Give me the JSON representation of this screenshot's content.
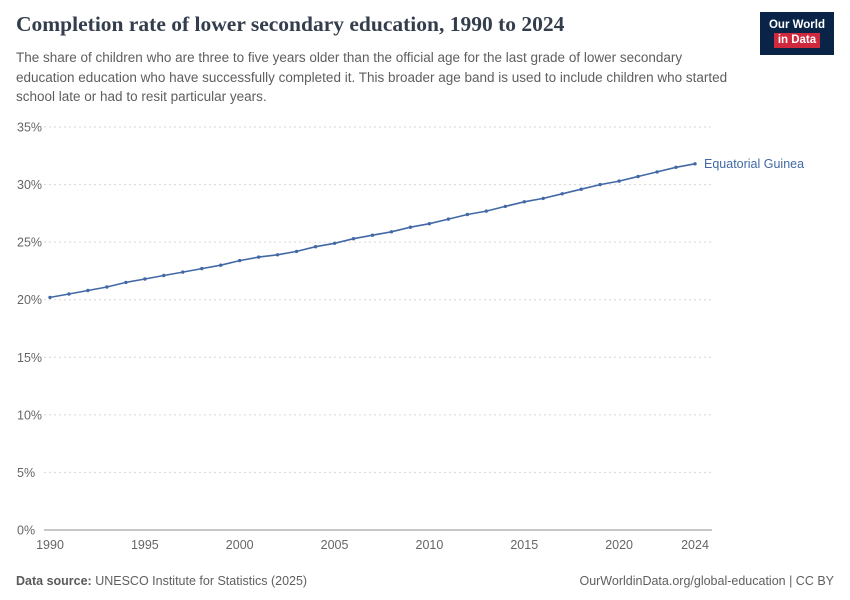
{
  "header": {
    "title": "Completion rate of lower secondary education, 1990 to 2024",
    "subtitle": "The share of children who are three to five years older than the official age for the last grade of lower secondary education education who have successfully completed it. This broader age band is used to include children who started school late or had to resit particular years.",
    "logo": {
      "line1": "Our World",
      "line2": "in Data"
    }
  },
  "footer": {
    "source_label": "Data source:",
    "source_text": " UNESCO Institute for Statistics (2025)",
    "right_text": "OurWorldinData.org/global-education | CC BY"
  },
  "colors": {
    "series_blue": "#4269a5",
    "logo_navy": "#0a2448",
    "logo_red": "#d0293e"
  },
  "chart_data": {
    "type": "line",
    "title": "Completion rate of lower secondary education, 1990 to 2024",
    "xlabel": "",
    "ylabel": "",
    "xlim": [
      1990,
      2024
    ],
    "ylim": [
      0,
      35
    ],
    "yticks": [
      0,
      5,
      10,
      15,
      20,
      25,
      30,
      35
    ],
    "ytick_suffix": "%",
    "xticks": [
      1990,
      1995,
      2000,
      2005,
      2010,
      2015,
      2020,
      2024
    ],
    "grid": "dashed-horizontal",
    "legend_position": "end-of-line-label",
    "series": [
      {
        "name": "Equatorial Guinea",
        "color": "#4269a5",
        "x": [
          1990,
          1991,
          1992,
          1993,
          1994,
          1995,
          1996,
          1997,
          1998,
          1999,
          2000,
          2001,
          2002,
          2003,
          2004,
          2005,
          2006,
          2007,
          2008,
          2009,
          2010,
          2011,
          2012,
          2013,
          2014,
          2015,
          2016,
          2017,
          2018,
          2019,
          2020,
          2021,
          2022,
          2023,
          2024
        ],
        "values": [
          20.2,
          20.5,
          20.8,
          21.1,
          21.5,
          21.8,
          22.1,
          22.4,
          22.7,
          23.0,
          23.4,
          23.7,
          23.9,
          24.2,
          24.6,
          24.9,
          25.3,
          25.6,
          25.9,
          26.3,
          26.6,
          27.0,
          27.4,
          27.7,
          28.1,
          28.5,
          28.8,
          29.2,
          29.6,
          30.0,
          30.3,
          30.7,
          31.1,
          31.5,
          31.8
        ]
      }
    ]
  }
}
